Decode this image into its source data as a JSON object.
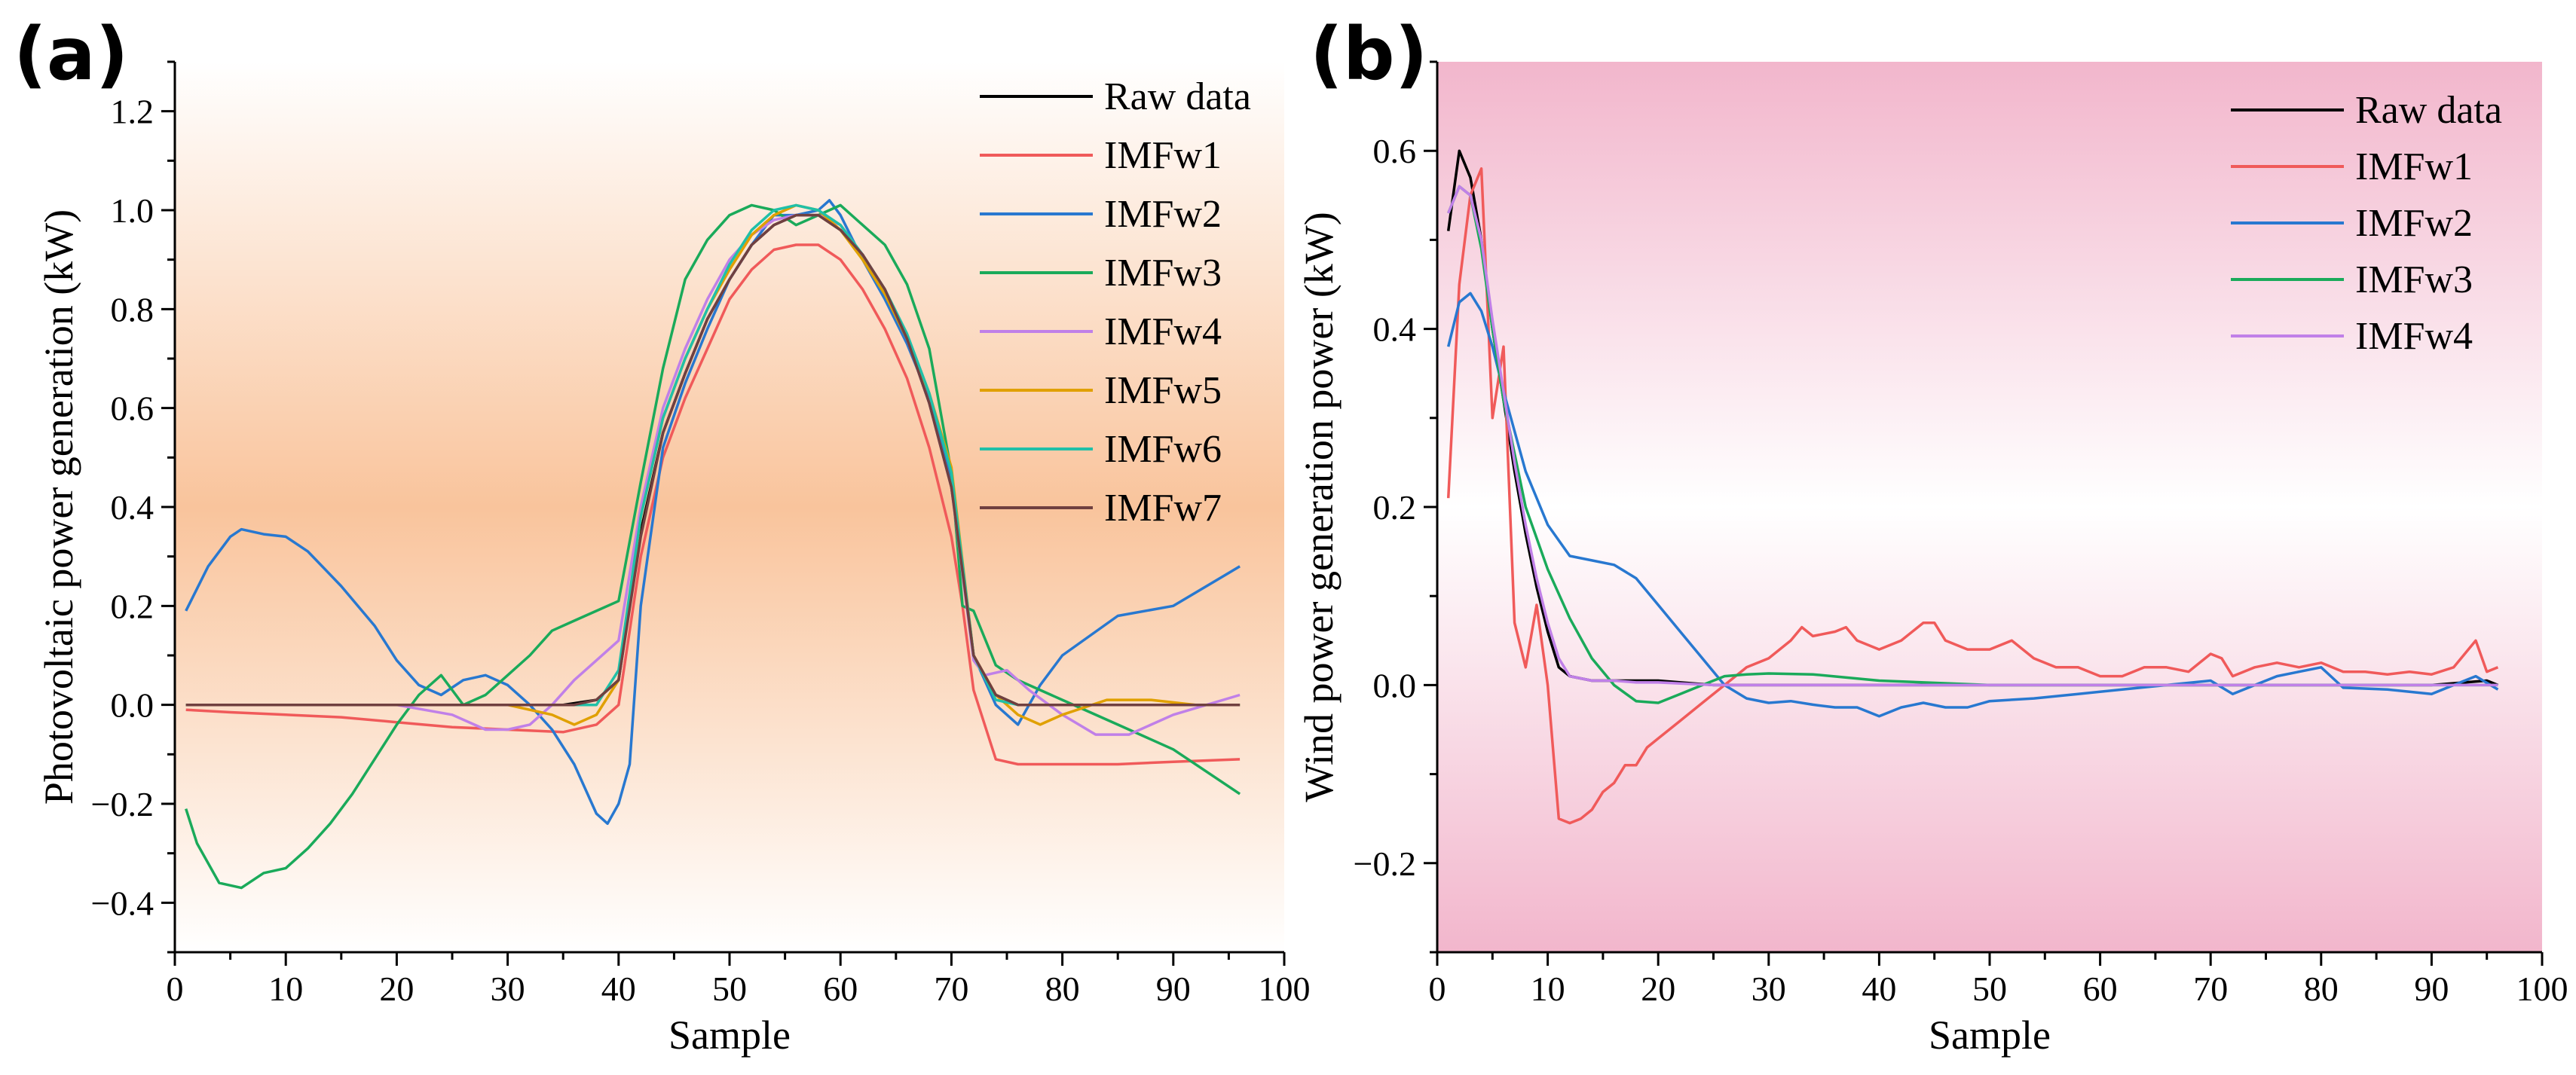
{
  "chart_data": [
    {
      "type": "line",
      "panel_label": "(a)",
      "xlabel": "Sample",
      "ylabel": "Photovoltaic power generation (kW)",
      "xlim": [
        0,
        100
      ],
      "ylim": [
        -0.5,
        1.3
      ],
      "xticks": [
        0,
        10,
        20,
        30,
        40,
        50,
        60,
        70,
        80,
        90,
        100
      ],
      "xtick_labels": [
        "0",
        "10",
        "20",
        "30",
        "40",
        "50",
        "60",
        "70",
        "80",
        "90",
        "100"
      ],
      "yticks": [
        -0.4,
        -0.2,
        0.0,
        0.2,
        0.4,
        0.6,
        0.8,
        1.0,
        1.2
      ],
      "ytick_labels": [
        "−0.4",
        "−0.2",
        "0.0",
        "0.2",
        "0.4",
        "0.6",
        "0.8",
        "1.0",
        "1.2"
      ],
      "background": "gradient-orange",
      "legend_position": "top-right",
      "series": [
        {
          "name": "Raw data",
          "color": "#000000",
          "x": [
            1,
            5,
            10,
            20,
            30,
            35,
            38,
            40,
            42,
            44,
            46,
            48,
            50,
            52,
            54,
            56,
            58,
            60,
            62,
            64,
            66,
            68,
            70,
            71,
            72,
            74,
            76,
            78,
            80,
            90,
            96
          ],
          "y": [
            0,
            0,
            0,
            0,
            0,
            0,
            0.01,
            0.05,
            0.35,
            0.55,
            0.67,
            0.78,
            0.86,
            0.93,
            0.97,
            0.99,
            0.99,
            0.96,
            0.91,
            0.84,
            0.74,
            0.61,
            0.44,
            0.28,
            0.1,
            0.02,
            0,
            0,
            0,
            0,
            0
          ]
        },
        {
          "name": "IMFw1",
          "color": "#f05a5a",
          "x": [
            1,
            5,
            10,
            15,
            20,
            25,
            30,
            35,
            38,
            40,
            42,
            44,
            46,
            48,
            50,
            52,
            54,
            56,
            58,
            60,
            62,
            64,
            66,
            68,
            70,
            71,
            72,
            74,
            76,
            80,
            85,
            90,
            96
          ],
          "y": [
            -0.01,
            -0.015,
            -0.02,
            -0.025,
            -0.035,
            -0.045,
            -0.05,
            -0.055,
            -0.04,
            0.0,
            0.3,
            0.5,
            0.62,
            0.72,
            0.82,
            0.88,
            0.92,
            0.93,
            0.93,
            0.9,
            0.84,
            0.76,
            0.66,
            0.52,
            0.34,
            0.2,
            0.03,
            -0.11,
            -0.12,
            -0.12,
            -0.12,
            -0.115,
            -0.11
          ]
        },
        {
          "name": "IMFw2",
          "color": "#2878d0",
          "x": [
            1,
            3,
            5,
            6,
            8,
            10,
            12,
            15,
            18,
            20,
            22,
            24,
            26,
            28,
            30,
            32,
            34,
            36,
            38,
            39,
            40,
            41,
            42,
            44,
            46,
            48,
            50,
            52,
            54,
            56,
            58,
            59,
            60,
            62,
            64,
            66,
            68,
            70,
            72,
            74,
            76,
            78,
            80,
            85,
            90,
            96
          ],
          "y": [
            0.19,
            0.28,
            0.34,
            0.355,
            0.345,
            0.34,
            0.31,
            0.24,
            0.16,
            0.09,
            0.04,
            0.02,
            0.05,
            0.06,
            0.04,
            0.0,
            -0.05,
            -0.12,
            -0.22,
            -0.24,
            -0.2,
            -0.12,
            0.2,
            0.52,
            0.65,
            0.76,
            0.86,
            0.93,
            0.99,
            0.99,
            1.0,
            1.02,
            0.99,
            0.9,
            0.82,
            0.73,
            0.62,
            0.46,
            0.1,
            0.0,
            -0.04,
            0.04,
            0.1,
            0.18,
            0.2,
            0.28
          ]
        },
        {
          "name": "IMFw3",
          "color": "#1aaa5a",
          "x": [
            1,
            2,
            4,
            6,
            8,
            10,
            12,
            14,
            16,
            18,
            20,
            22,
            24,
            25,
            26,
            28,
            30,
            32,
            34,
            36,
            38,
            40,
            42,
            44,
            46,
            48,
            50,
            52,
            54,
            56,
            58,
            60,
            62,
            64,
            66,
            68,
            70,
            71,
            72,
            74,
            76,
            78,
            80,
            85,
            90,
            96
          ],
          "y": [
            -0.21,
            -0.28,
            -0.36,
            -0.37,
            -0.34,
            -0.33,
            -0.29,
            -0.24,
            -0.18,
            -0.11,
            -0.04,
            0.02,
            0.06,
            0.03,
            0.0,
            0.02,
            0.06,
            0.1,
            0.15,
            0.17,
            0.19,
            0.21,
            0.45,
            0.68,
            0.86,
            0.94,
            0.99,
            1.01,
            1.0,
            0.97,
            0.99,
            1.01,
            0.97,
            0.93,
            0.85,
            0.72,
            0.47,
            0.2,
            0.19,
            0.08,
            0.05,
            0.03,
            0.01,
            -0.04,
            -0.09,
            -0.18
          ]
        },
        {
          "name": "IMFw4",
          "color": "#c080e8",
          "x": [
            1,
            10,
            20,
            25,
            28,
            30,
            32,
            34,
            36,
            38,
            40,
            42,
            44,
            46,
            48,
            50,
            52,
            54,
            56,
            58,
            60,
            62,
            64,
            66,
            68,
            70,
            72,
            73,
            75,
            77,
            80,
            83,
            86,
            90,
            96
          ],
          "y": [
            0,
            0,
            0,
            -0.02,
            -0.05,
            -0.05,
            -0.04,
            0.0,
            0.05,
            0.09,
            0.13,
            0.4,
            0.6,
            0.72,
            0.82,
            0.9,
            0.95,
            0.98,
            0.99,
            0.99,
            0.97,
            0.91,
            0.84,
            0.74,
            0.61,
            0.44,
            0.09,
            0.06,
            0.07,
            0.03,
            -0.02,
            -0.06,
            -0.06,
            -0.02,
            0.02
          ]
        },
        {
          "name": "IMFw5",
          "color": "#e0a000",
          "x": [
            1,
            10,
            20,
            30,
            34,
            36,
            38,
            40,
            42,
            44,
            46,
            48,
            50,
            52,
            54,
            56,
            58,
            60,
            62,
            64,
            66,
            68,
            70,
            72,
            74,
            76,
            78,
            80,
            84,
            88,
            92,
            96
          ],
          "y": [
            0,
            0,
            0,
            0,
            -0.02,
            -0.04,
            -0.02,
            0.05,
            0.38,
            0.58,
            0.7,
            0.8,
            0.88,
            0.95,
            0.99,
            1.01,
            1.0,
            0.96,
            0.9,
            0.83,
            0.74,
            0.63,
            0.48,
            0.1,
            0.02,
            -0.02,
            -0.04,
            -0.02,
            0.01,
            0.01,
            0,
            0
          ]
        },
        {
          "name": "IMFw6",
          "color": "#20c0a8",
          "x": [
            1,
            10,
            20,
            30,
            36,
            38,
            40,
            42,
            44,
            46,
            48,
            50,
            52,
            54,
            56,
            58,
            60,
            62,
            64,
            66,
            68,
            70,
            72,
            74,
            76,
            78,
            80,
            90,
            96
          ],
          "y": [
            0,
            0,
            0,
            0,
            0,
            0.0,
            0.07,
            0.38,
            0.58,
            0.7,
            0.8,
            0.89,
            0.96,
            1.0,
            1.01,
            1.0,
            0.97,
            0.91,
            0.84,
            0.75,
            0.63,
            0.47,
            0.1,
            0.01,
            0.0,
            0,
            0,
            0,
            0
          ]
        },
        {
          "name": "IMFw7",
          "color": "#704040",
          "x": [
            1,
            10,
            20,
            30,
            36,
            38,
            40,
            42,
            44,
            46,
            48,
            50,
            52,
            54,
            56,
            58,
            60,
            62,
            64,
            66,
            68,
            70,
            72,
            74,
            76,
            80,
            90,
            96
          ],
          "y": [
            0,
            0,
            0,
            0,
            0,
            0.01,
            0.05,
            0.34,
            0.55,
            0.67,
            0.78,
            0.86,
            0.93,
            0.97,
            0.99,
            0.99,
            0.96,
            0.91,
            0.84,
            0.74,
            0.61,
            0.44,
            0.1,
            0.02,
            0,
            0,
            0,
            0
          ]
        }
      ]
    },
    {
      "type": "line",
      "panel_label": "(b)",
      "xlabel": "Sample",
      "ylabel": "Wind power generation power (kW)",
      "xlim": [
        0,
        100
      ],
      "ylim": [
        -0.3,
        0.7
      ],
      "xticks": [
        0,
        10,
        20,
        30,
        40,
        50,
        60,
        70,
        80,
        90,
        100
      ],
      "xtick_labels": [
        "0",
        "10",
        "20",
        "30",
        "40",
        "50",
        "60",
        "70",
        "80",
        "90",
        "100"
      ],
      "yticks": [
        -0.2,
        0.0,
        0.2,
        0.4,
        0.6
      ],
      "ytick_labels": [
        "−0.2",
        "0.0",
        "0.2",
        "0.4",
        "0.6"
      ],
      "background": "gradient-pink",
      "legend_position": "top-right",
      "series": [
        {
          "name": "Raw data",
          "color": "#000000",
          "x": [
            1,
            2,
            3,
            4,
            5,
            6,
            7,
            8,
            9,
            10,
            11,
            12,
            14,
            16,
            18,
            20,
            25,
            30,
            40,
            50,
            60,
            70,
            80,
            90,
            95,
            96
          ],
          "y": [
            0.51,
            0.6,
            0.57,
            0.5,
            0.4,
            0.32,
            0.24,
            0.17,
            0.11,
            0.06,
            0.02,
            0.01,
            0.005,
            0.005,
            0.005,
            0.005,
            0,
            0,
            0,
            0,
            0,
            0,
            0,
            0,
            0.005,
            0
          ]
        },
        {
          "name": "IMFw1",
          "color": "#f05a5a",
          "x": [
            1,
            2,
            3,
            4,
            5,
            6,
            7,
            8,
            9,
            10,
            11,
            12,
            13,
            14,
            15,
            16,
            17,
            18,
            19,
            20,
            22,
            24,
            26,
            28,
            30,
            32,
            33,
            34,
            36,
            37,
            38,
            40,
            42,
            44,
            45,
            46,
            48,
            50,
            52,
            54,
            56,
            58,
            60,
            62,
            64,
            66,
            68,
            70,
            71,
            72,
            74,
            76,
            78,
            80,
            82,
            84,
            86,
            88,
            90,
            92,
            94,
            95,
            96
          ],
          "y": [
            0.21,
            0.45,
            0.55,
            0.58,
            0.3,
            0.38,
            0.07,
            0.02,
            0.09,
            0.0,
            -0.15,
            -0.155,
            -0.15,
            -0.14,
            -0.12,
            -0.11,
            -0.09,
            -0.09,
            -0.07,
            -0.06,
            -0.04,
            -0.02,
            0.0,
            0.02,
            0.03,
            0.05,
            0.065,
            0.055,
            0.06,
            0.065,
            0.05,
            0.04,
            0.05,
            0.07,
            0.07,
            0.05,
            0.04,
            0.04,
            0.05,
            0.03,
            0.02,
            0.02,
            0.01,
            0.01,
            0.02,
            0.02,
            0.015,
            0.035,
            0.03,
            0.01,
            0.02,
            0.025,
            0.02,
            0.025,
            0.015,
            0.015,
            0.012,
            0.015,
            0.012,
            0.02,
            0.05,
            0.015,
            0.02
          ]
        },
        {
          "name": "IMFw2",
          "color": "#2878d0",
          "x": [
            1,
            2,
            3,
            4,
            5,
            6,
            8,
            10,
            12,
            14,
            16,
            18,
            20,
            22,
            24,
            26,
            28,
            30,
            32,
            34,
            36,
            38,
            40,
            42,
            44,
            46,
            48,
            50,
            54,
            58,
            62,
            66,
            70,
            72,
            74,
            76,
            78,
            80,
            82,
            86,
            90,
            92,
            94,
            96
          ],
          "y": [
            0.38,
            0.43,
            0.44,
            0.42,
            0.38,
            0.33,
            0.24,
            0.18,
            0.145,
            0.14,
            0.135,
            0.12,
            0.09,
            0.06,
            0.03,
            0.0,
            -0.015,
            -0.02,
            -0.018,
            -0.022,
            -0.025,
            -0.025,
            -0.035,
            -0.025,
            -0.02,
            -0.025,
            -0.025,
            -0.018,
            -0.015,
            -0.01,
            -0.005,
            0.0,
            0.005,
            -0.01,
            0.0,
            0.01,
            0.015,
            0.02,
            -0.003,
            -0.005,
            -0.01,
            0.0,
            0.01,
            -0.005
          ]
        },
        {
          "name": "IMFw3",
          "color": "#1aaa5a",
          "x": [
            1,
            2,
            3,
            4,
            5,
            6,
            7,
            8,
            10,
            12,
            14,
            16,
            18,
            20,
            22,
            24,
            26,
            28,
            30,
            34,
            40,
            50,
            60,
            70,
            80,
            90,
            96
          ],
          "y": [
            0.53,
            0.56,
            0.55,
            0.49,
            0.4,
            0.32,
            0.26,
            0.2,
            0.13,
            0.075,
            0.03,
            0.0,
            -0.018,
            -0.02,
            -0.01,
            0.0,
            0.01,
            0.012,
            0.013,
            0.012,
            0.005,
            0,
            0,
            0,
            0,
            0,
            0
          ]
        },
        {
          "name": "IMFw4",
          "color": "#c080e8",
          "x": [
            1,
            2,
            3,
            4,
            5,
            6,
            7,
            8,
            9,
            10,
            11,
            12,
            14,
            16,
            18,
            20,
            25,
            30,
            40,
            50,
            60,
            70,
            80,
            90,
            96
          ],
          "y": [
            0.53,
            0.56,
            0.55,
            0.5,
            0.41,
            0.33,
            0.25,
            0.18,
            0.12,
            0.07,
            0.03,
            0.01,
            0.005,
            0.005,
            0.003,
            0.003,
            0,
            0,
            0,
            0,
            0,
            0,
            0,
            0,
            0
          ]
        }
      ]
    }
  ]
}
